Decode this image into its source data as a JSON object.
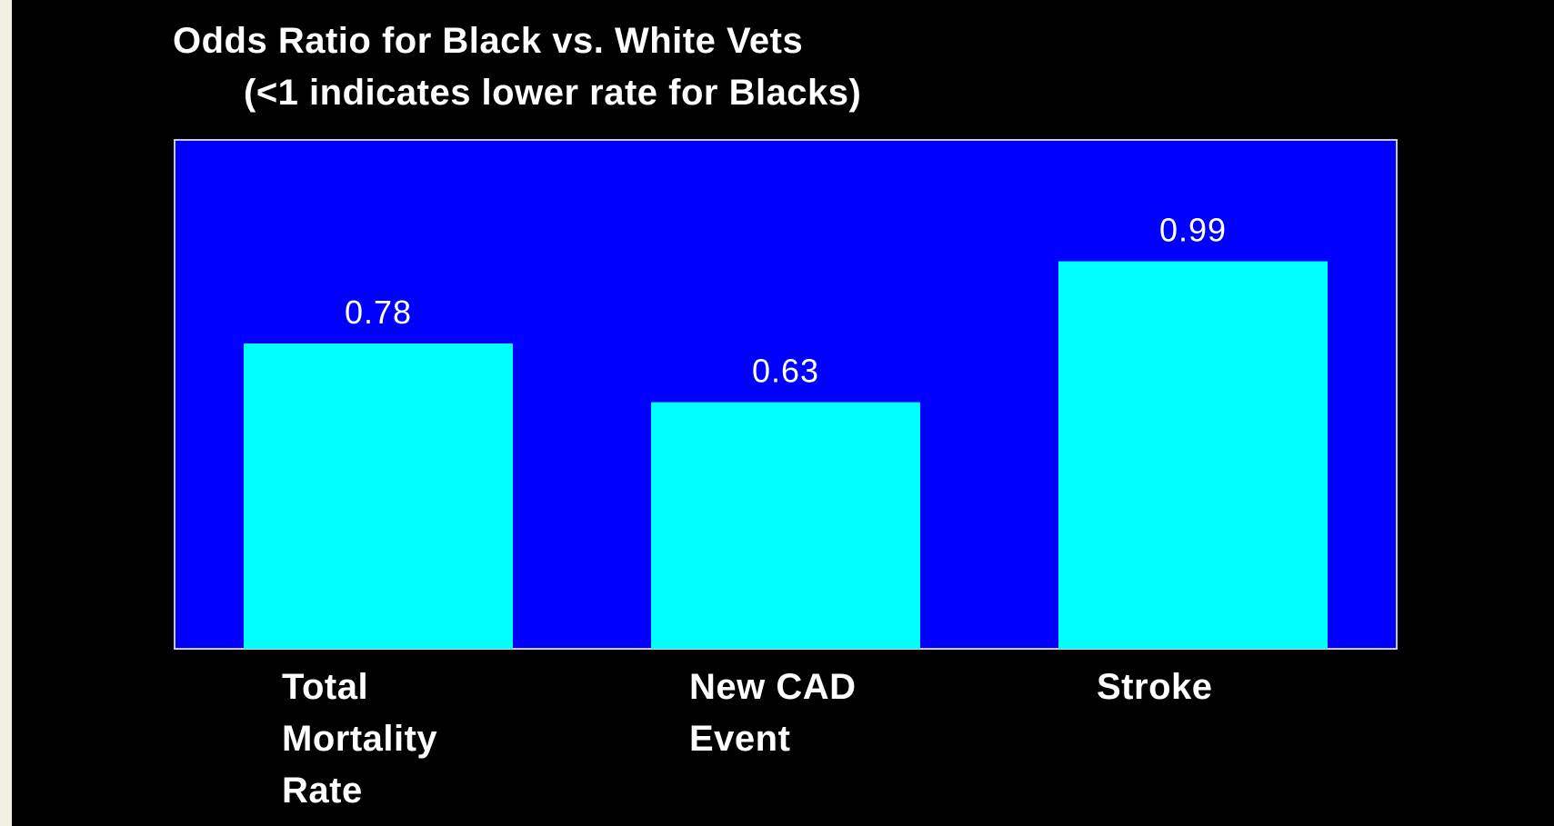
{
  "colors": {
    "background": "#000000",
    "plot_area": "#0000ff",
    "bar": "#00ffff",
    "text": "#ffffff",
    "left_strip": "#f1f1e2"
  },
  "chart_data": {
    "type": "bar",
    "title": "Odds Ratio for Black vs. White Vets",
    "subtitle": "(<1 indicates lower rate for Blacks)",
    "categories": [
      "Total\nMortality\nRate",
      "New CAD\nEvent",
      "Stroke"
    ],
    "values": [
      0.78,
      0.63,
      0.99
    ],
    "data_labels": [
      "0.78",
      "0.63",
      "0.99"
    ],
    "xlabel": "",
    "ylabel": "",
    "ylim": [
      0,
      1.3
    ],
    "grid": false,
    "legend": "none"
  }
}
